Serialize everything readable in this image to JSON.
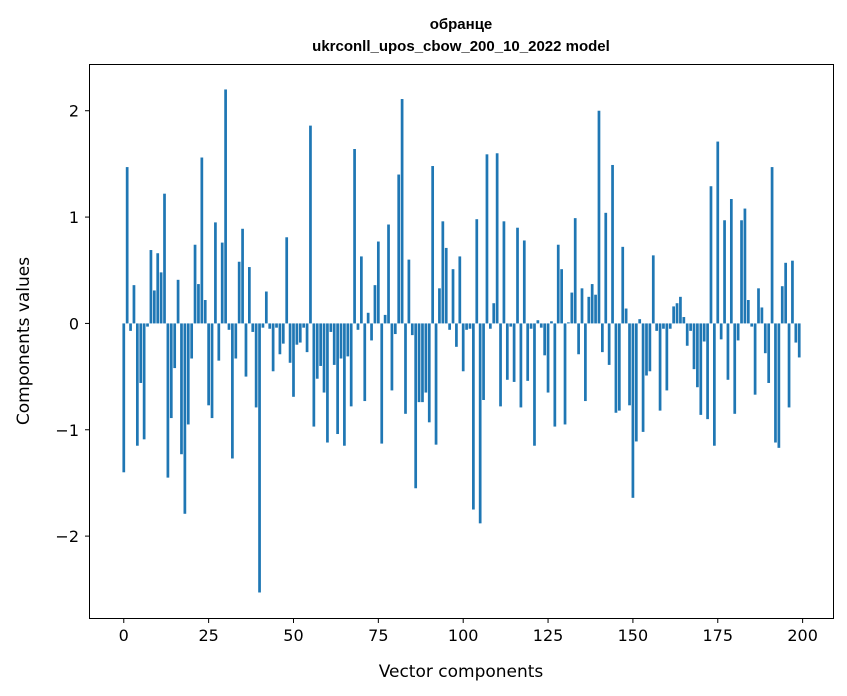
{
  "chart_data": {
    "type": "bar",
    "title": "обранце",
    "subtitle": "ukrconll_upos_cbow_200_10_2022 model",
    "xlabel": "Vector components",
    "ylabel": "Components values",
    "xlim": [
      -9.95,
      208.95
    ],
    "ylim": [
      -2.77,
      2.43
    ],
    "xticks": [
      0,
      25,
      50,
      75,
      100,
      125,
      150,
      175,
      200
    ],
    "yticks": [
      -2,
      -1,
      0,
      1,
      2
    ],
    "ytick_labels": [
      "−2",
      "−1",
      "0",
      "1",
      "2"
    ],
    "grid": false,
    "bar_color": "#1f77b4",
    "x": [
      0,
      1,
      2,
      3,
      4,
      5,
      6,
      7,
      8,
      9,
      10,
      11,
      12,
      13,
      14,
      15,
      16,
      17,
      18,
      19,
      20,
      21,
      22,
      23,
      24,
      25,
      26,
      27,
      28,
      29,
      30,
      31,
      32,
      33,
      34,
      35,
      36,
      37,
      38,
      39,
      40,
      41,
      42,
      43,
      44,
      45,
      46,
      47,
      48,
      49,
      50,
      51,
      52,
      53,
      54,
      55,
      56,
      57,
      58,
      59,
      60,
      61,
      62,
      63,
      64,
      65,
      66,
      67,
      68,
      69,
      70,
      71,
      72,
      73,
      74,
      75,
      76,
      77,
      78,
      79,
      80,
      81,
      82,
      83,
      84,
      85,
      86,
      87,
      88,
      89,
      90,
      91,
      92,
      93,
      94,
      95,
      96,
      97,
      98,
      99,
      100,
      101,
      102,
      103,
      104,
      105,
      106,
      107,
      108,
      109,
      110,
      111,
      112,
      113,
      114,
      115,
      116,
      117,
      118,
      119,
      120,
      121,
      122,
      123,
      124,
      125,
      126,
      127,
      128,
      129,
      130,
      131,
      132,
      133,
      134,
      135,
      136,
      137,
      138,
      139,
      140,
      141,
      142,
      143,
      144,
      145,
      146,
      147,
      148,
      149,
      150,
      151,
      152,
      153,
      154,
      155,
      156,
      157,
      158,
      159,
      160,
      161,
      162,
      163,
      164,
      165,
      166,
      167,
      168,
      169,
      170,
      171,
      172,
      173,
      174,
      175,
      176,
      177,
      178,
      179,
      180,
      181,
      182,
      183,
      184,
      185,
      186,
      187,
      188,
      189,
      190,
      191,
      192,
      193,
      194,
      195,
      196,
      197,
      198,
      199
    ],
    "values": [
      -1.4,
      1.47,
      -0.07,
      0.36,
      -1.15,
      -0.56,
      -1.09,
      -0.03,
      0.69,
      0.31,
      0.66,
      0.48,
      1.22,
      -1.45,
      -0.89,
      -0.42,
      0.41,
      -1.23,
      -1.79,
      -0.95,
      -0.33,
      0.74,
      0.37,
      1.56,
      0.22,
      -0.77,
      -0.89,
      0.95,
      -0.35,
      0.76,
      2.2,
      -0.06,
      -1.27,
      -0.33,
      0.58,
      0.89,
      -0.5,
      0.53,
      -0.08,
      -0.79,
      -2.53,
      -0.04,
      0.3,
      -0.05,
      -0.45,
      -0.04,
      -0.29,
      -0.19,
      0.81,
      -0.37,
      -0.69,
      -0.2,
      -0.18,
      -0.04,
      -0.27,
      1.86,
      -0.97,
      -0.52,
      -0.4,
      -0.65,
      -1.12,
      -0.08,
      -0.39,
      -1.04,
      -0.33,
      -1.15,
      -0.31,
      -0.78,
      1.64,
      -0.06,
      0.63,
      -0.73,
      0.1,
      -0.16,
      0.36,
      0.77,
      -1.13,
      0.08,
      0.93,
      -0.63,
      -0.1,
      1.4,
      2.11,
      -0.85,
      0.6,
      -0.11,
      -1.55,
      -0.74,
      -0.74,
      -0.65,
      -0.93,
      1.48,
      -1.14,
      0.33,
      0.96,
      0.71,
      -0.06,
      0.51,
      -0.22,
      0.63,
      -0.45,
      -0.06,
      -0.05,
      -1.75,
      0.98,
      -1.88,
      -0.72,
      1.59,
      -0.05,
      0.19,
      1.6,
      -0.78,
      0.96,
      -0.53,
      -0.03,
      -0.55,
      0.9,
      -0.79,
      0.78,
      -0.54,
      -0.05,
      -1.15,
      0.03,
      -0.04,
      -0.3,
      -0.65,
      0.02,
      -0.97,
      0.74,
      0.51,
      -0.95,
      0.01,
      0.29,
      0.99,
      -0.29,
      0.33,
      -0.73,
      0.25,
      0.37,
      0.27,
      2.0,
      -0.27,
      1.04,
      -0.39,
      1.49,
      -0.84,
      -0.82,
      0.72,
      0.14,
      -0.77,
      -1.64,
      -1.11,
      0.04,
      -1.02,
      -0.49,
      -0.45,
      0.64,
      -0.07,
      -0.82,
      -0.05,
      -0.63,
      -0.05,
      0.16,
      0.19,
      0.25,
      0.06,
      -0.21,
      -0.07,
      -0.43,
      -0.6,
      -0.86,
      -0.17,
      -0.9,
      1.29,
      -1.15,
      1.71,
      -0.15,
      0.97,
      -0.53,
      1.17,
      -0.85,
      -0.16,
      0.97,
      1.08,
      0.22,
      -0.03,
      -0.67,
      0.33,
      0.15,
      -0.28,
      -0.56,
      1.47,
      -1.12,
      -1.17,
      0.35,
      0.57,
      -0.79,
      0.59,
      -0.18,
      -0.32
    ]
  }
}
